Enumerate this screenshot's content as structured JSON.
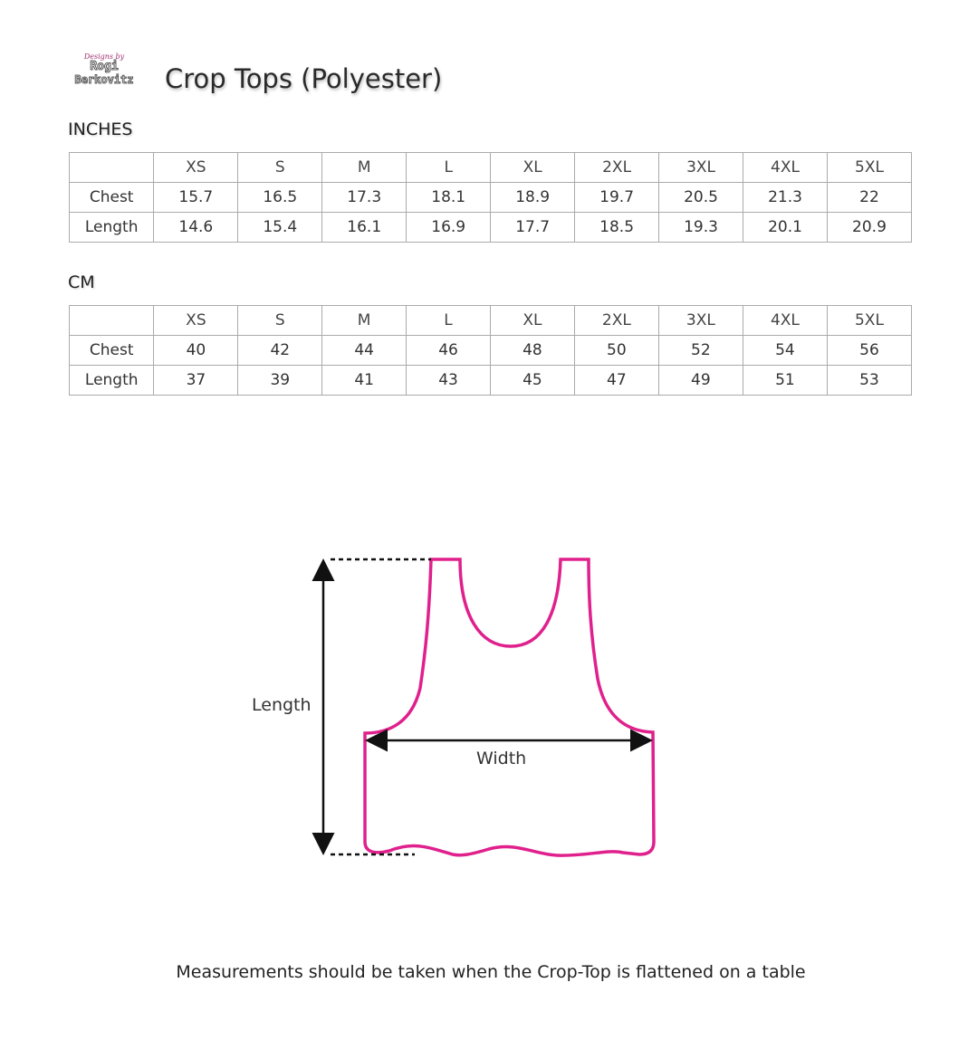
{
  "logo": {
    "line1": "Designs by",
    "line2": "Rogi",
    "line3": "Berkovitz"
  },
  "title": "Crop Tops (Polyester)",
  "sizes": [
    "XS",
    "S",
    "M",
    "L",
    "XL",
    "2XL",
    "3XL",
    "4XL",
    "5XL"
  ],
  "inches": {
    "label": "INCHES",
    "rows": [
      {
        "name": "Chest",
        "values": [
          "15.7",
          "16.5",
          "17.3",
          "18.1",
          "18.9",
          "19.7",
          "20.5",
          "21.3",
          "22"
        ]
      },
      {
        "name": "Length",
        "values": [
          "14.6",
          "15.4",
          "16.1",
          "16.9",
          "17.7",
          "18.5",
          "19.3",
          "20.1",
          "20.9"
        ]
      }
    ]
  },
  "cm": {
    "label": "CM",
    "rows": [
      {
        "name": "Chest",
        "values": [
          "40",
          "42",
          "44",
          "46",
          "48",
          "50",
          "52",
          "54",
          "56"
        ]
      },
      {
        "name": "Length",
        "values": [
          "37",
          "39",
          "41",
          "43",
          "45",
          "47",
          "49",
          "51",
          "53"
        ]
      }
    ]
  },
  "diagram": {
    "length_label": "Length",
    "width_label": "Width",
    "outline_color": "#e0208c"
  },
  "note": "Measurements should be taken when the Crop-Top is flattened on a table"
}
